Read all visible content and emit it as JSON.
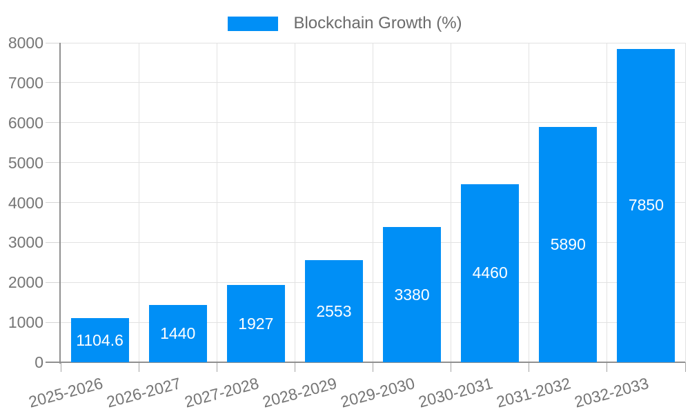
{
  "legend": {
    "label": "Blockchain Growth (%)"
  },
  "chart_data": {
    "type": "bar",
    "title": "Blockchain Growth (%)",
    "xlabel": "",
    "ylabel": "",
    "categories": [
      "2025-2026",
      "2026-2027",
      "2027-2028",
      "2028-2029",
      "2029-2030",
      "2030-2031",
      "2031-2032",
      "2032-2033"
    ],
    "values": [
      1104.6,
      1440,
      1927,
      2553,
      3380,
      4460,
      5890,
      7850
    ],
    "value_labels": [
      "1104.6",
      "1440",
      "1927",
      "2553",
      "3380",
      "4460",
      "5890",
      "7850"
    ],
    "yticks": [
      0,
      1000,
      2000,
      3000,
      4000,
      5000,
      6000,
      7000,
      8000
    ],
    "ylim": [
      0,
      8000
    ],
    "grid": true,
    "legend_position": "top-center",
    "value_label_position": "inside-center",
    "x_label_rotation_deg": -15,
    "colors": {
      "bar": "#008ff6",
      "value_label": "#ffffff",
      "axis_label": "#757575",
      "legend_label": "#6b6b6b",
      "gridline": "#e2e2e2",
      "y_tick": "#d4d4d4",
      "x_tick": "#a3a3a3",
      "axis_line": "#8f8f8f"
    }
  }
}
